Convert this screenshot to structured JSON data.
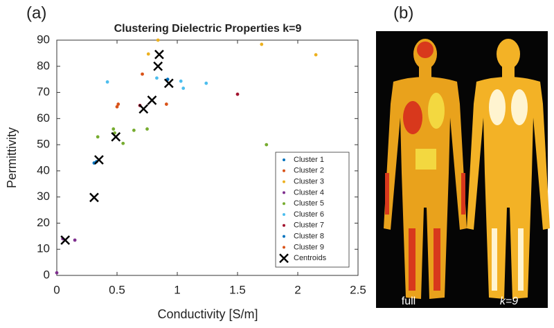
{
  "chart_data": {
    "type": "scatter",
    "title": "Clustering Dielectric Properties k=9",
    "x_label": "Conductivity [S/m]",
    "y_label": "Permittivity",
    "xlim": [
      0,
      2.5
    ],
    "xticks": [
      0,
      0.5,
      1,
      1.5,
      2,
      2.5
    ],
    "ylim": [
      0,
      90
    ],
    "yticks": [
      0,
      10,
      20,
      30,
      40,
      50,
      60,
      70,
      80,
      90
    ],
    "grid": false,
    "legend": "lower right",
    "series": [
      {
        "name": "Cluster 1",
        "color": "#0072bd",
        "marker": "dot",
        "x": [
          0.31,
          0.33
        ],
        "values": [
          43,
          43.5
        ]
      },
      {
        "name": "Cluster 2",
        "color": "#d95319",
        "marker": "dot",
        "x": [
          0.51,
          0.71
        ],
        "values": [
          65.5,
          77
        ]
      },
      {
        "name": "Cluster 3",
        "color": "#edb120",
        "marker": "dot",
        "x": [
          0.76,
          0.84,
          1.7,
          2.15
        ],
        "values": [
          84.7,
          90,
          88.4,
          84.4
        ]
      },
      {
        "name": "Cluster 4",
        "color": "#7e2f8e",
        "marker": "dot",
        "x": [
          0,
          0.15,
          0.05
        ],
        "values": [
          1,
          13.5,
          14
        ]
      },
      {
        "name": "Cluster 5",
        "color": "#77ac30",
        "marker": "dot",
        "x": [
          0.34,
          0.47,
          0.48,
          0.55,
          0.64,
          0.75,
          1.74
        ],
        "values": [
          53,
          56,
          54.5,
          50.5,
          55.5,
          56,
          50
        ]
      },
      {
        "name": "Cluster 6",
        "color": "#4dbeee",
        "marker": "dot",
        "x": [
          0.42,
          0.83,
          1.03,
          1.05,
          1.24
        ],
        "values": [
          74,
          75.5,
          74.3,
          71.6,
          73.5
        ]
      },
      {
        "name": "Cluster 7",
        "color": "#a2142f",
        "marker": "dot",
        "x": [
          0.69,
          1.5
        ],
        "values": [
          65,
          69.3
        ]
      },
      {
        "name": "Cluster 8",
        "color": "#0072bd",
        "marker": "dot",
        "x": [
          0.92
        ],
        "values": [
          75
        ]
      },
      {
        "name": "Cluster 9",
        "color": "#d95319",
        "marker": "dot",
        "x": [
          0.5,
          0.91
        ],
        "values": [
          64.5,
          65.5
        ]
      },
      {
        "name": "Centroids",
        "color": "#000000",
        "marker": "x",
        "x": [
          0.07,
          0.31,
          0.35,
          0.49,
          0.72,
          0.79,
          0.84,
          0.85,
          0.93
        ],
        "values": [
          13.5,
          29.8,
          44.2,
          53,
          63.7,
          67,
          80,
          84.5,
          73.5
        ]
      }
    ]
  },
  "panels": {
    "a": "(a)",
    "b": "(b)"
  },
  "image": {
    "caption_left": "full",
    "caption_right": "k=9"
  }
}
